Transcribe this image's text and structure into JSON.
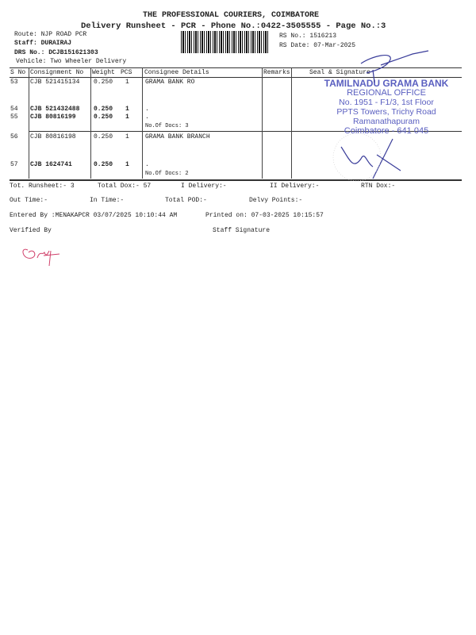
{
  "header": {
    "company": "THE PROFESSIONAL COURIERS, COIMBATORE",
    "subtitle": "Delivery Runsheet - PCR - Phone No.:0422-3505555 - Page No.:3",
    "route": "Route: NJP ROAD  PCR",
    "staff": "Staff: DURAIRAJ",
    "drs_no": "DRS No.: DCJB151621303",
    "vehicle": "Vehicle: Two Wheeler Delivery",
    "rs_no": "RS No.: 1516213",
    "rs_date": "RS Date: 07-Mar-2025"
  },
  "table": {
    "columns": [
      "S No",
      "Consignment No",
      "Weight",
      "PCS",
      "Consignee Details",
      "Remarks",
      "Seal & Signature"
    ],
    "rows": [
      {
        "sno": "53",
        "cno": "CJB 521415134",
        "weight": "0.250",
        "pcs": "1",
        "details": "GRAMA BANK RO"
      },
      {
        "sno": "54",
        "cno": "CJB 521432488",
        "weight": "0.250",
        "pcs": "1",
        "details": "."
      },
      {
        "sno": "55",
        "cno": "CJB 80816199",
        "weight": "0.250",
        "pcs": "1",
        "details": "."
      },
      {
        "sno": "56",
        "cno": "CJB 80816198",
        "weight": "0.250",
        "pcs": "1",
        "details": "GRAMA BANK BRANCH"
      },
      {
        "sno": "57",
        "cno": "CJB 1624741",
        "weight": "0.250",
        "pcs": "1",
        "details": "."
      }
    ],
    "group1_docs": "No.Of Docs: 3",
    "group2_docs": "No.Of Docs: 2"
  },
  "stamp": {
    "lines": [
      "TAMILNADU GRAMA BANK",
      "REGIONAL OFFICE",
      "No. 1951 - F1/3, 1st Floor",
      "PPTS Towers, Trichy Road",
      "Ramanathapuram",
      "Coimbatore - 641 045"
    ],
    "color": "#5a5fc0"
  },
  "summary": {
    "tot_runsheet": "Tot. Runsheet:- 3",
    "total_dox": "Total Dox:-   57",
    "i_delivery": "I Delivery:-",
    "ii_delivery": "II Delivery:-",
    "rtn_dox": "RTN Dox:-",
    "out_time": "Out Time:-",
    "in_time": "In Time:-",
    "total_pod": "Total POD:-",
    "delvy_points": "Delvy Points:-",
    "entered_by": "Entered By :MENAKAPCR 03/07/2025 10:10:44 AM",
    "printed_on": "Printed on: 07-03-2025 10:15:57",
    "verified_by": "Verified By",
    "staff_signature": "Staff Signature"
  }
}
